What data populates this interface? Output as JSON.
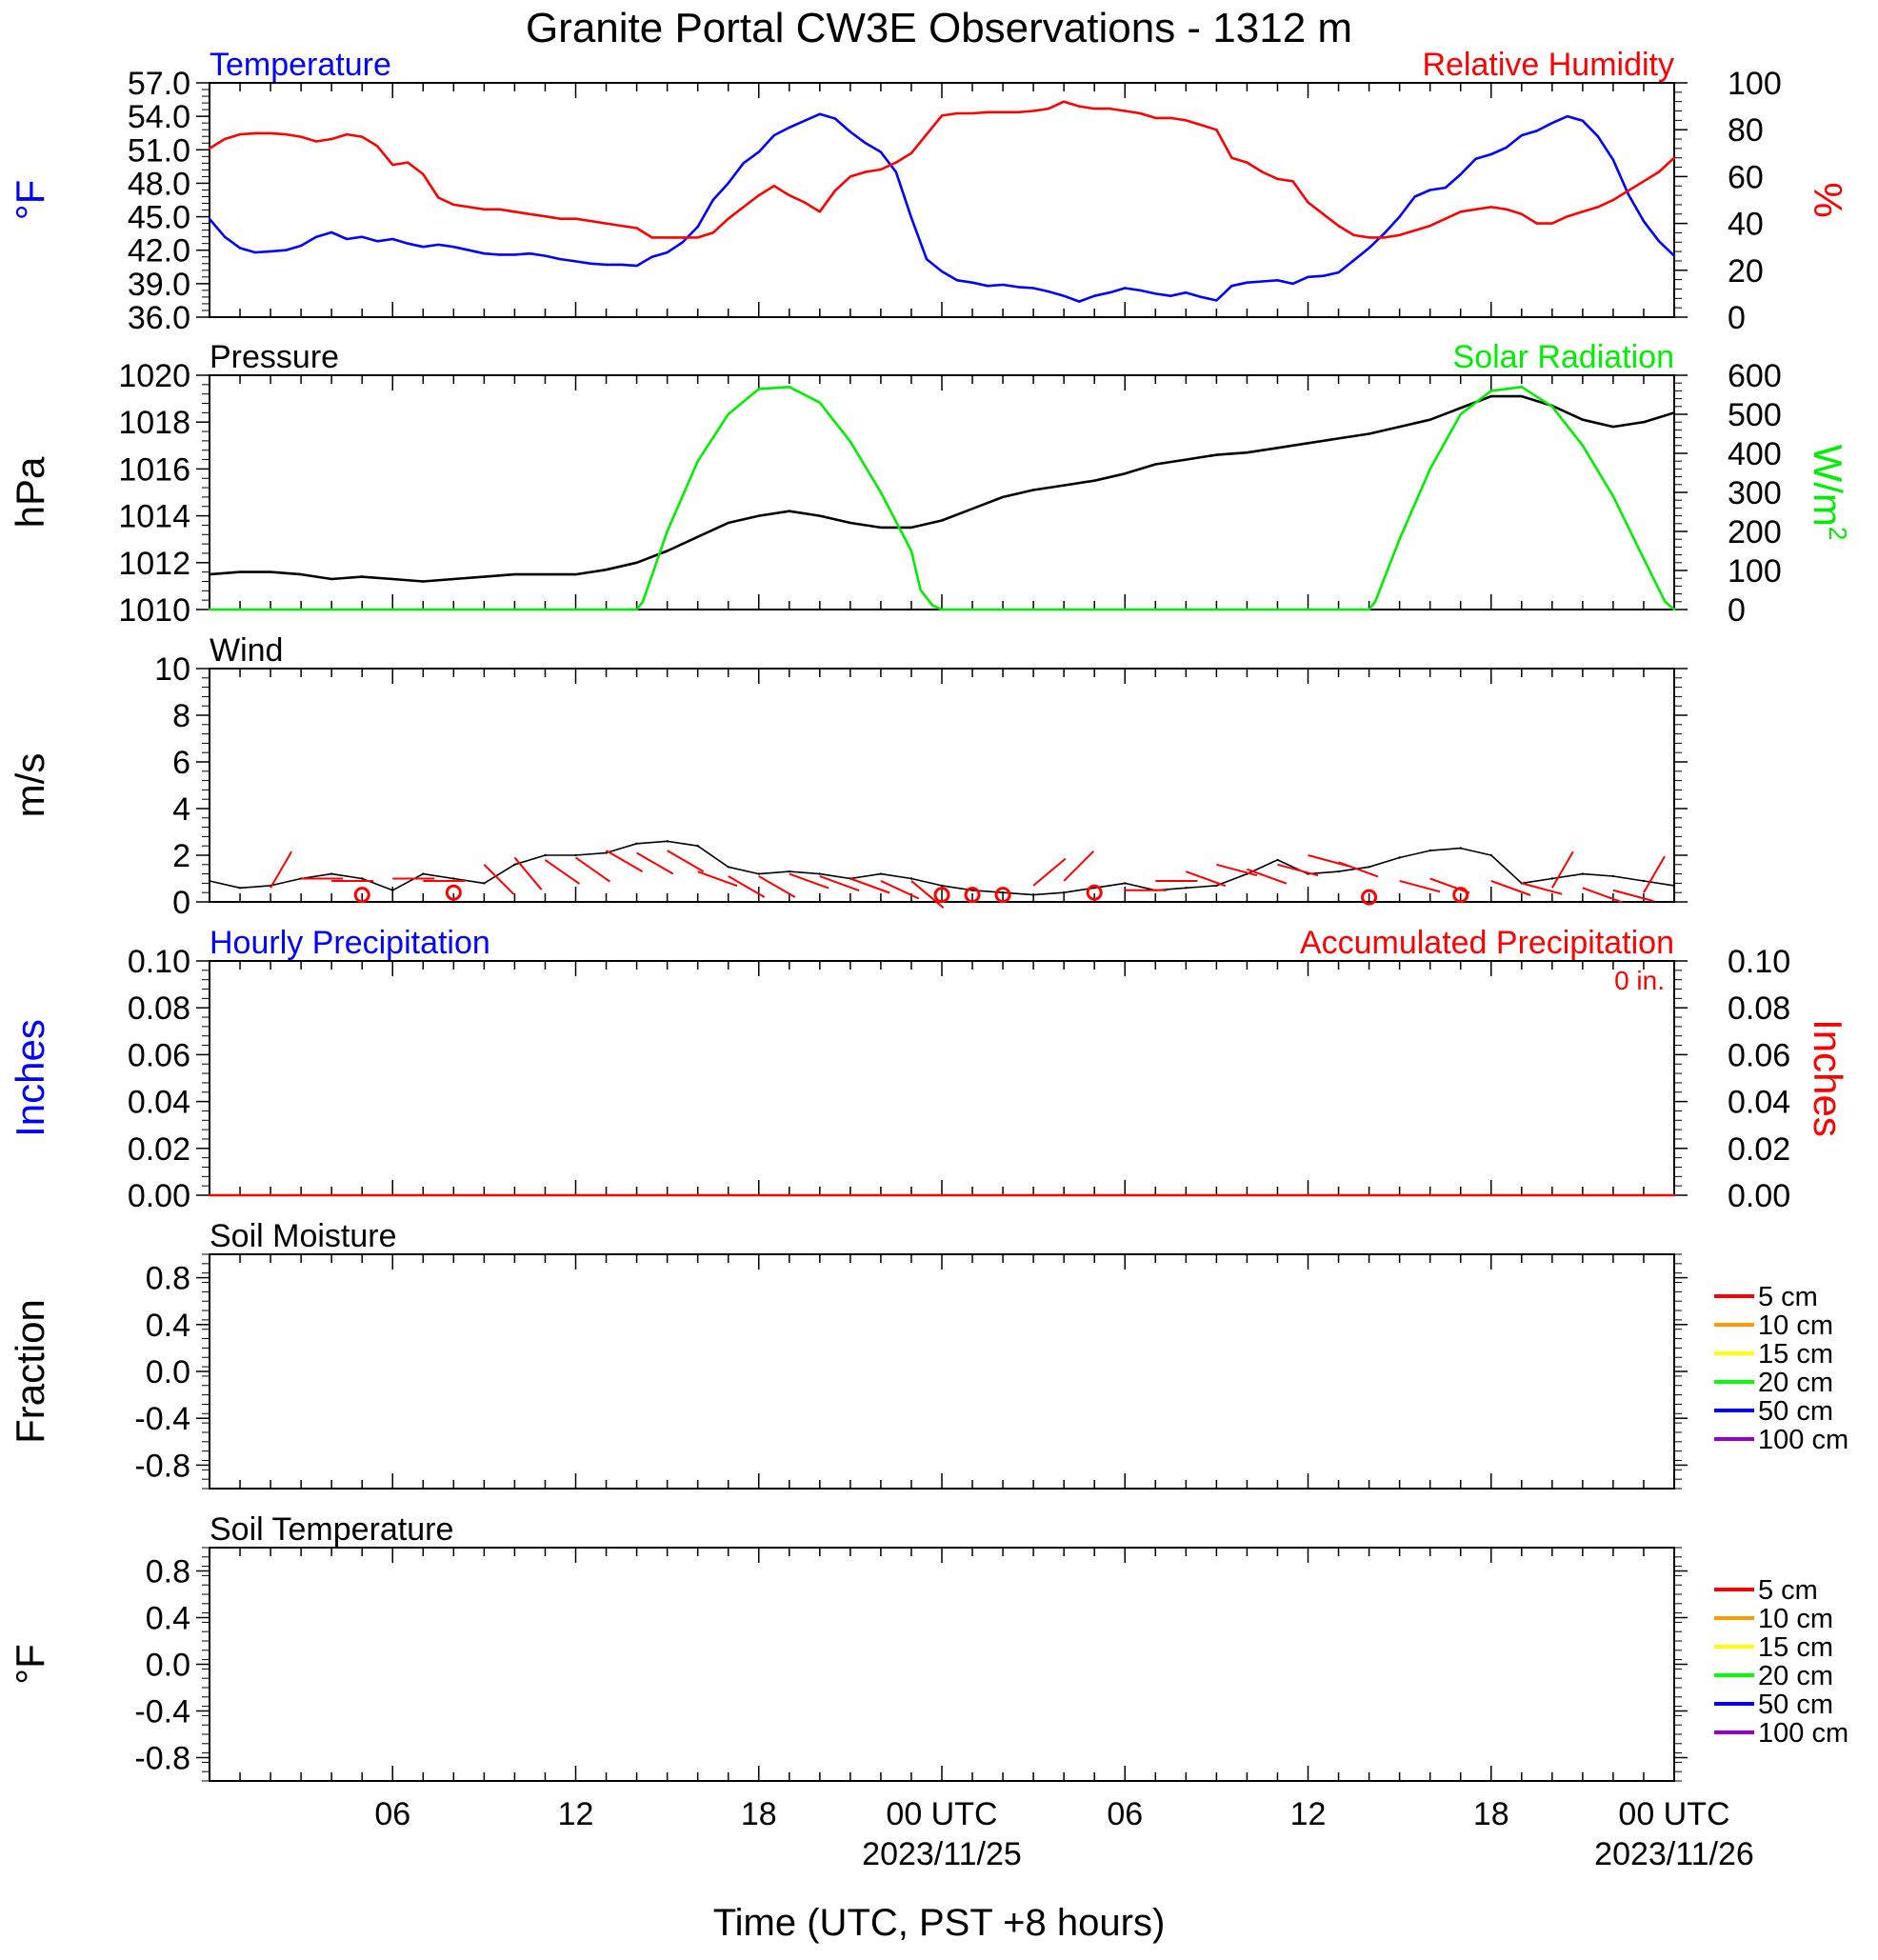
{
  "page": {
    "title": "Granite Portal CW3E Observations - 1312 m",
    "xlabel": "Time (UTC, PST +8 hours)"
  },
  "colors": {
    "temperature": "#0000ff",
    "humidity": "#ff0000",
    "pressure": "#000000",
    "solar": "#00ee00",
    "wind_speed": "#000000",
    "wind_barb": "#ff0000",
    "hourly_precip": "#0000ff",
    "accum_precip": "#ff0000",
    "soil_5": "#ff0000",
    "soil_10": "#ff9900",
    "soil_15": "#ffff00",
    "soil_20": "#00ff00",
    "soil_50": "#0000ff",
    "soil_100": "#9900cc"
  },
  "chart_data": [
    {
      "id": "temp_rh",
      "type": "line",
      "left_label": "Temperature",
      "right_label": "Relative Humidity",
      "left_ylabel": "°F",
      "right_ylabel": "%",
      "left_ylim": [
        36,
        57
      ],
      "right_ylim": [
        0,
        100
      ],
      "left_ticks": [
        "57.0",
        "54.0",
        "51.0",
        "48.0",
        "45.0",
        "42.0",
        "39.0",
        "36.0"
      ],
      "right_ticks": [
        "100",
        "80",
        "60",
        "40",
        "20",
        "0"
      ],
      "series": [
        {
          "axis": "left",
          "color_key": "temperature",
          "x": [
            0,
            0.5,
            1,
            1.5,
            2,
            2.5,
            3,
            3.5,
            4,
            4.5,
            5,
            5.5,
            6,
            6.5,
            7,
            7.5,
            8,
            8.5,
            9,
            9.5,
            10,
            10.5,
            11,
            11.5,
            12,
            12.5,
            13,
            13.5,
            14,
            14.5,
            15,
            15.5,
            16,
            16.5,
            17,
            17.5,
            18,
            18.5,
            19,
            19.5,
            20,
            20.5,
            21,
            21.5,
            22,
            22.5,
            23,
            23.5,
            24,
            24.5,
            25,
            25.5,
            26,
            26.5,
            27,
            27.5,
            28,
            28.5,
            29,
            29.5,
            30,
            30.5,
            31,
            31.5,
            32,
            32.5,
            33,
            33.5,
            34,
            34.5,
            35,
            35.5,
            36,
            36.5,
            37,
            37.5,
            38,
            38.5,
            39,
            39.5,
            40,
            40.5,
            41,
            41.5,
            42,
            42.5,
            43,
            43.5,
            44,
            44.5,
            45,
            45.5,
            46,
            46.5,
            47,
            47.5,
            48
          ],
          "y": [
            44.8,
            43.2,
            42.2,
            41.8,
            41.9,
            42.0,
            42.4,
            43.2,
            43.6,
            43.0,
            43.2,
            42.8,
            43.0,
            42.6,
            42.3,
            42.5,
            42.3,
            42.0,
            41.7,
            41.6,
            41.6,
            41.7,
            41.5,
            41.2,
            41.0,
            40.8,
            40.7,
            40.7,
            40.6,
            41.4,
            41.8,
            42.7,
            44.1,
            46.5,
            48.0,
            49.8,
            50.8,
            52.3,
            53.0,
            53.6,
            54.2,
            53.8,
            52.6,
            51.6,
            50.8,
            49.0,
            44.9,
            41.2,
            40.1,
            39.3,
            39.1,
            38.8,
            38.9,
            38.7,
            38.6,
            38.3,
            37.9,
            37.4,
            37.9,
            38.2,
            38.6,
            38.4,
            38.1,
            37.9,
            38.2,
            37.8,
            37.5,
            38.8,
            39.1,
            39.2,
            39.3,
            39.0,
            39.6,
            39.7,
            40.0,
            41.1,
            42.2,
            43.5,
            45.0,
            46.8,
            47.4,
            47.6,
            48.8,
            50.2,
            50.6,
            51.2,
            52.3,
            52.7,
            53.4,
            54.0,
            53.6,
            52.2,
            50.1,
            47.0,
            44.6,
            42.8,
            41.5
          ]
        },
        {
          "axis": "right",
          "color_key": "humidity",
          "x": [
            0,
            0.5,
            1,
            1.5,
            2,
            2.5,
            3,
            3.5,
            4,
            4.5,
            5,
            5.5,
            6,
            6.5,
            7,
            7.5,
            8,
            8.5,
            9,
            9.5,
            10,
            10.5,
            11,
            11.5,
            12,
            12.5,
            13,
            13.5,
            14,
            14.5,
            15,
            15.5,
            16,
            16.5,
            17,
            17.5,
            18,
            18.5,
            19,
            19.5,
            20,
            20.5,
            21,
            21.5,
            22,
            22.5,
            23,
            23.5,
            24,
            24.5,
            25,
            25.5,
            26,
            26.5,
            27,
            27.5,
            28,
            28.5,
            29,
            29.5,
            30,
            30.5,
            31,
            31.5,
            32,
            32.5,
            33,
            33.5,
            34,
            34.5,
            35,
            35.5,
            36,
            36.5,
            37,
            37.5,
            38,
            38.5,
            39,
            39.5,
            40,
            40.5,
            41,
            41.5,
            42,
            42.5,
            43,
            43.5,
            44,
            44.5,
            45,
            45.5,
            46,
            46.5,
            47,
            47.5,
            48
          ],
          "y": [
            72,
            76,
            78,
            78.5,
            78.5,
            78,
            77,
            75,
            76,
            78,
            77,
            73,
            65,
            66,
            61,
            51,
            48,
            47,
            46,
            46,
            45,
            44,
            43,
            42,
            42,
            41,
            40,
            39,
            38,
            34,
            34,
            34,
            34,
            36,
            42,
            47,
            52,
            56,
            52,
            49,
            45,
            54,
            60,
            62,
            63,
            66,
            70,
            78,
            86,
            87,
            87,
            87.5,
            87.5,
            87.5,
            88,
            89,
            92,
            90,
            89,
            89,
            88,
            87,
            85,
            85,
            84,
            82,
            80,
            68,
            66,
            62,
            59,
            58,
            49,
            44,
            39,
            35,
            34,
            34,
            35,
            37,
            39,
            42,
            45,
            46,
            47,
            46,
            44,
            40,
            40,
            43,
            45,
            47,
            50,
            54,
            58,
            62,
            68
          ]
        }
      ]
    },
    {
      "id": "pressure_solar",
      "type": "line",
      "left_label": "Pressure",
      "right_label": "Solar Radiation",
      "left_ylabel": "hPa",
      "right_ylabel": "W/m",
      "right_ylabel_sup": "2",
      "left_ylim": [
        1010,
        1020
      ],
      "right_ylim": [
        0,
        600
      ],
      "left_ticks": [
        "1020",
        "1018",
        "1016",
        "1014",
        "1012",
        "1010"
      ],
      "right_ticks": [
        "600",
        "500",
        "400",
        "300",
        "200",
        "100",
        "0"
      ],
      "series": [
        {
          "axis": "left",
          "color_key": "pressure",
          "x": [
            0,
            1,
            2,
            3,
            4,
            5,
            6,
            7,
            8,
            9,
            10,
            11,
            12,
            13,
            14,
            15,
            16,
            17,
            18,
            19,
            20,
            21,
            22,
            23,
            24,
            25,
            26,
            27,
            28,
            29,
            30,
            31,
            32,
            33,
            34,
            35,
            36,
            37,
            38,
            39,
            40,
            41,
            42,
            43,
            44,
            45,
            46,
            47,
            48
          ],
          "y": [
            1011.5,
            1011.6,
            1011.6,
            1011.5,
            1011.3,
            1011.4,
            1011.3,
            1011.2,
            1011.3,
            1011.4,
            1011.5,
            1011.5,
            1011.5,
            1011.7,
            1012.0,
            1012.5,
            1013.1,
            1013.7,
            1014.0,
            1014.2,
            1014.0,
            1013.7,
            1013.5,
            1013.5,
            1013.8,
            1014.3,
            1014.8,
            1015.1,
            1015.3,
            1015.5,
            1015.8,
            1016.2,
            1016.4,
            1016.6,
            1016.7,
            1016.9,
            1017.1,
            1017.3,
            1017.5,
            1017.8,
            1018.1,
            1018.6,
            1019.1,
            1019.1,
            1018.7,
            1018.1,
            1017.8,
            1018.0,
            1018.4
          ]
        },
        {
          "axis": "right",
          "color_key": "solar",
          "x": [
            0,
            14,
            14.2,
            15,
            16,
            17,
            18,
            19,
            20,
            21,
            22,
            23,
            23.3,
            23.7,
            24,
            38,
            38.2,
            39,
            40,
            41,
            42,
            43,
            44,
            45,
            46,
            47,
            47.7,
            48
          ],
          "y": [
            0,
            0,
            20,
            200,
            380,
            500,
            565,
            570,
            530,
            430,
            300,
            150,
            50,
            10,
            0,
            0,
            20,
            180,
            360,
            500,
            560,
            570,
            520,
            420,
            290,
            130,
            20,
            0
          ]
        }
      ]
    },
    {
      "id": "wind",
      "type": "line",
      "left_label": "Wind",
      "left_ylabel": "m/s",
      "left_ylim": [
        0,
        10
      ],
      "left_ticks": [
        "10",
        "8",
        "6",
        "4",
        "2",
        "0"
      ],
      "series": [
        {
          "axis": "left",
          "color_key": "wind_speed",
          "x": [
            0,
            1,
            2,
            3,
            4,
            5,
            6,
            7,
            8,
            9,
            10,
            11,
            12,
            13,
            14,
            15,
            16,
            17,
            18,
            19,
            20,
            21,
            22,
            23,
            24,
            25,
            26,
            27,
            28,
            29,
            30,
            31,
            32,
            33,
            34,
            35,
            36,
            37,
            38,
            39,
            40,
            41,
            42,
            43,
            44,
            45,
            46,
            47,
            48
          ],
          "y": [
            0.9,
            0.6,
            0.7,
            1.0,
            1.2,
            1.0,
            0.5,
            1.2,
            1.0,
            0.8,
            1.6,
            2.0,
            2.0,
            2.1,
            2.5,
            2.6,
            2.4,
            1.5,
            1.2,
            1.3,
            1.2,
            1.0,
            1.2,
            1.0,
            0.7,
            0.5,
            0.4,
            0.3,
            0.4,
            0.6,
            0.8,
            0.5,
            0.6,
            0.7,
            1.2,
            1.8,
            1.2,
            1.3,
            1.5,
            1.9,
            2.2,
            2.3,
            2.0,
            0.8,
            1.0,
            1.2,
            1.1,
            0.9,
            0.7
          ]
        }
      ]
    },
    {
      "id": "precip",
      "type": "line",
      "left_label": "Hourly Precipitation",
      "right_label": "Accumulated Precipitation",
      "right_note": "0 in.",
      "left_ylabel": "Inches",
      "right_ylabel": "Inches",
      "left_ylim": [
        0,
        0.1
      ],
      "right_ylim": [
        0,
        0.1
      ],
      "left_ticks": [
        "0.10",
        "0.08",
        "0.06",
        "0.04",
        "0.02",
        "0.00"
      ],
      "right_ticks": [
        "0.10",
        "0.08",
        "0.06",
        "0.04",
        "0.02",
        "0.00"
      ],
      "series": [
        {
          "axis": "right",
          "color_key": "accum_precip",
          "x": [
            0,
            48
          ],
          "y": [
            0,
            0
          ]
        }
      ]
    },
    {
      "id": "soil_moisture",
      "type": "line",
      "left_label": "Soil Moisture",
      "left_ylabel": "Fraction",
      "left_ylim": [
        -1,
        1
      ],
      "left_ticks": [
        "0.8",
        "0.4",
        "0.0",
        "-0.4",
        "-0.8"
      ],
      "legend_position": "right",
      "legend": [
        "5 cm",
        "10 cm",
        "15 cm",
        "20 cm",
        "50 cm",
        "100 cm"
      ],
      "series": []
    },
    {
      "id": "soil_temperature",
      "type": "line",
      "left_label": "Soil Temperature",
      "left_ylabel": "°F",
      "left_ylim": [
        -1,
        1
      ],
      "left_ticks": [
        "0.8",
        "0.4",
        "0.0",
        "-0.4",
        "-0.8"
      ],
      "legend_position": "right",
      "legend": [
        "5 cm",
        "10 cm",
        "15 cm",
        "20 cm",
        "50 cm",
        "100 cm"
      ],
      "series": []
    }
  ],
  "wind_barbs": {
    "hours": [
      2,
      3,
      4,
      5,
      6,
      7,
      8,
      9,
      10,
      11,
      12,
      13,
      14,
      15,
      16,
      17,
      18,
      19,
      20,
      21,
      22,
      23,
      24,
      25,
      26,
      27,
      28,
      29,
      30,
      31,
      32,
      33,
      34,
      35,
      36,
      37,
      38,
      39,
      40,
      41,
      42,
      43,
      44,
      45,
      46,
      47
    ],
    "speed": [
      0.6,
      1.0,
      0.9,
      0.3,
      1.0,
      0.9,
      0.4,
      1.6,
      1.9,
      1.8,
      1.9,
      2.2,
      2.1,
      2.2,
      1.3,
      1.1,
      1.1,
      1.2,
      1.1,
      1.0,
      0.9,
      0.9,
      0.3,
      0.3,
      0.3,
      0.7,
      0.9,
      0.4,
      0.5,
      0.9,
      1.3,
      1.6,
      1.4,
      1.6,
      2.0,
      1.7,
      0.2,
      0.9,
      1.0,
      0.3,
      0.9,
      0.8,
      0.6,
      0.6,
      0.5,
      0.4
    ],
    "dir": [
      330,
      270,
      270,
      0,
      270,
      270,
      0,
      225,
      220,
      235,
      235,
      240,
      240,
      240,
      250,
      240,
      240,
      250,
      250,
      250,
      245,
      230,
      0,
      0,
      0,
      310,
      315,
      0,
      270,
      270,
      250,
      255,
      250,
      255,
      255,
      250,
      0,
      255,
      250,
      0,
      250,
      255,
      330,
      250,
      255,
      330
    ]
  },
  "x_axis": {
    "hour_span": 48,
    "ticks": [
      {
        "hour": 6,
        "label": "06",
        "sublabel": ""
      },
      {
        "hour": 12,
        "label": "12",
        "sublabel": ""
      },
      {
        "hour": 18,
        "label": "18",
        "sublabel": ""
      },
      {
        "hour": 24,
        "label": "00 UTC",
        "sublabel": "2023/11/25"
      },
      {
        "hour": 30,
        "label": "06",
        "sublabel": ""
      },
      {
        "hour": 36,
        "label": "12",
        "sublabel": ""
      },
      {
        "hour": 42,
        "label": "18",
        "sublabel": ""
      },
      {
        "hour": 48,
        "label": "00 UTC",
        "sublabel": "2023/11/26"
      }
    ]
  }
}
